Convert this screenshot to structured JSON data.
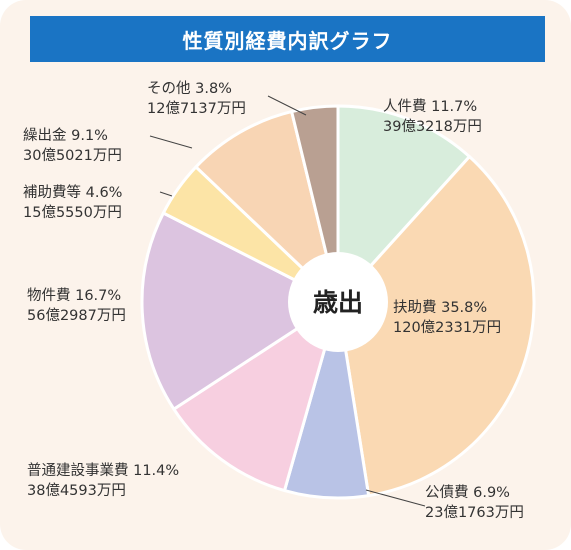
{
  "title": "性質別経費内訳グラフ",
  "chart_data": {
    "type": "pie",
    "title": "性質別経費内訳グラフ",
    "center_label": "歳出",
    "unit": "%",
    "slices": [
      {
        "name": "人件費",
        "percent": 11.7,
        "amount": "39億3218万円",
        "color": "#d8eddc"
      },
      {
        "name": "扶助費",
        "percent": 35.8,
        "amount": "120億2331万円",
        "color": "#fad9b3"
      },
      {
        "name": "公債費",
        "percent": 6.9,
        "amount": "23億1763万円",
        "color": "#b9c3e6"
      },
      {
        "name": "普通建設事業費",
        "percent": 11.4,
        "amount": "38億4593万円",
        "color": "#f7cfe0"
      },
      {
        "name": "物件費",
        "percent": 16.7,
        "amount": "56億2987万円",
        "color": "#dcc4e0"
      },
      {
        "name": "補助費等",
        "percent": 4.6,
        "amount": "15億5550万円",
        "color": "#fce4a6"
      },
      {
        "name": "繰出金",
        "percent": 9.1,
        "amount": "30億5021万円",
        "color": "#f8d5b4"
      },
      {
        "name": "その他",
        "percent": 3.8,
        "amount": "12億7137万円",
        "color": "#b9a092"
      }
    ]
  }
}
